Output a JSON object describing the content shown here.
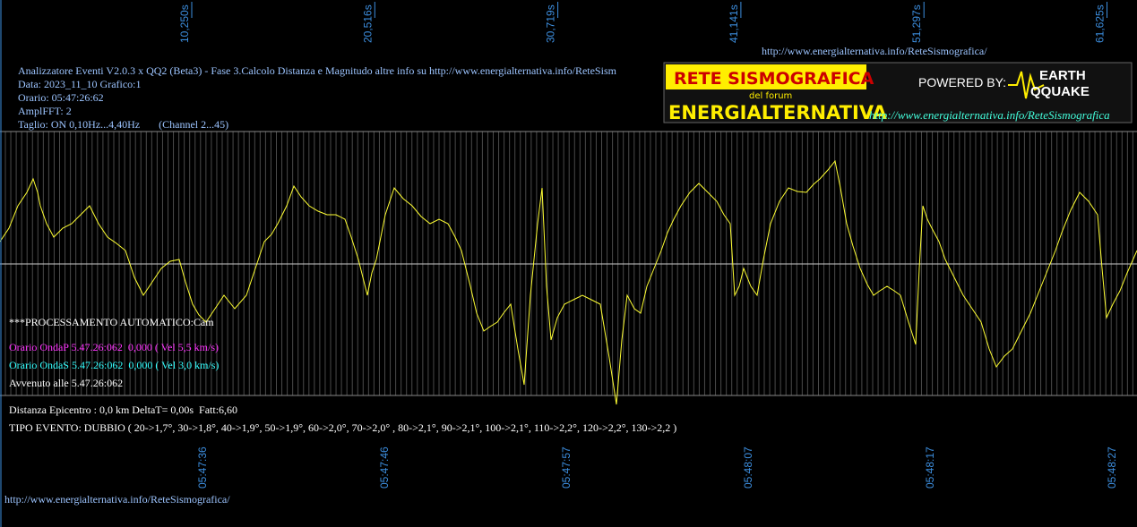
{
  "top_time_labels": [
    "10,250s",
    "20,516s",
    "30,719s",
    "41,141s",
    "51,297s",
    "61,625s"
  ],
  "bottom_time_labels": [
    "05:47:36",
    "05:47:46",
    "05:47:57",
    "05:48:07",
    "05:48:17",
    "05:48:27"
  ],
  "header": {
    "url_top": "http://www.energialternativa.info/ReteSismografica/",
    "lines": [
      "Analizzatore Eventi V2.0.3 x QQ2 (Beta3) - Fase 3.Calcolo Distanza e Magnitudo altre info su http://www.energialternativa.info/ReteSism",
      "Data: 2023_11_10 Grafico:1",
      "Orario: 05:47:26:62",
      "AmplFFT: 2",
      "Taglio: ON 0,10Hz...4,40Hz       (Channel 2...45)"
    ]
  },
  "logo": {
    "title": "RETE SISMOGRAFICA",
    "subtitle": "del forum",
    "name": "ENERGIALTERNATIVA",
    "powered": "POWERED BY:",
    "brand1": "EARTH",
    "brand2": "QQUAKE",
    "url": "http://www.energialternativa.info/ReteSismografica"
  },
  "overlay": {
    "processing": "***PROCESSAMENTO AUTOMATICO:Cam",
    "onda_p": "Orario OndaP 5.47.26:062  0,000 ( Vel 5,5 km/s)",
    "onda_s": "Orario OndaS 5.47.26:062  0,000 ( Vel 3,0 km/s)",
    "avvenuto": "Avvenuto alle 5.47.26:062"
  },
  "footer": {
    "distance": "Distanza Epicentro : 0,0 km DeltaT= 0,00s  Fatt:6,60",
    "tipo": "TIPO EVENTO: DUBBIO ( 20->1,7°, 30->1,8°, 40->1,9°, 50->1,9°, 60->2,0°, 70->2,0° , 80->2,1°, 90->2,1°, 100->2,1°, 110->2,2°, 120->2,2°, 130->2,2 )",
    "url": "http://www.energialternativa.info/ReteSismografica/"
  }
}
